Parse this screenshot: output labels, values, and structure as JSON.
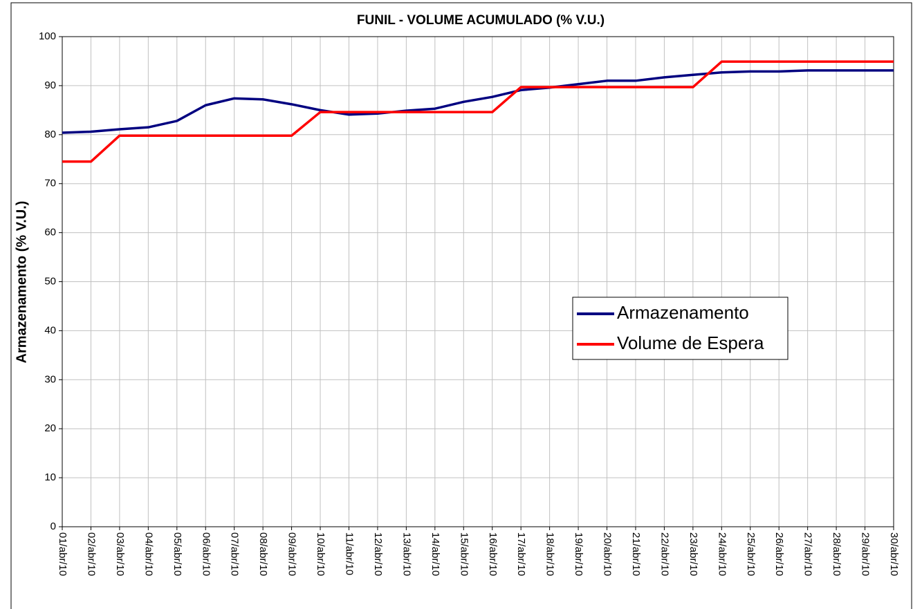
{
  "chart_data": {
    "type": "line",
    "title": "FUNIL - VOLUME ACUMULADO (% V.U.)",
    "y_label": "Armazenamento (% V.U.)",
    "categories": [
      "01/abr/10",
      "02/abr/10",
      "03/abr/10",
      "04/abr/10",
      "05/abr/10",
      "06/abr/10",
      "07/abr/10",
      "08/abr/10",
      "09/abr/10",
      "10/abr/10",
      "11/abr/10",
      "12/abr/10",
      "13/abr/10",
      "14/abr/10",
      "15/abr/10",
      "16/abr/10",
      "17/abr/10",
      "18/abr/10",
      "19/abr/10",
      "20/abr/10",
      "21/abr/10",
      "22/abr/10",
      "23/abr/10",
      "24/abr/10",
      "25/abr/10",
      "26/abr/10",
      "27/abr/10",
      "28/abr/10",
      "29/abr/10",
      "30/abr/10"
    ],
    "series": [
      {
        "name": "Armazenamento",
        "color": "#000080",
        "values": [
          80.4,
          80.6,
          81.1,
          81.5,
          82.8,
          86.0,
          87.4,
          87.2,
          86.2,
          85.0,
          84.1,
          84.3,
          84.9,
          85.3,
          86.7,
          87.7,
          89.1,
          89.6,
          90.3,
          91.0,
          91.0,
          91.7,
          92.2,
          92.7,
          92.9,
          92.9,
          93.1,
          93.1,
          93.1,
          93.1
        ]
      },
      {
        "name": "Volume de Espera",
        "color": "#ff0000",
        "values": [
          74.5,
          74.5,
          79.8,
          79.8,
          79.8,
          79.8,
          79.8,
          79.8,
          79.8,
          84.6,
          84.6,
          84.6,
          84.6,
          84.6,
          84.6,
          84.6,
          89.7,
          89.7,
          89.7,
          89.7,
          89.7,
          89.7,
          89.7,
          94.9,
          94.9,
          94.9,
          94.9,
          94.9,
          94.9,
          94.9
        ]
      }
    ],
    "ylim": [
      0,
      100
    ],
    "yticks": [
      0,
      10,
      20,
      30,
      40,
      50,
      60,
      70,
      80,
      90,
      100
    ],
    "grid": true
  }
}
